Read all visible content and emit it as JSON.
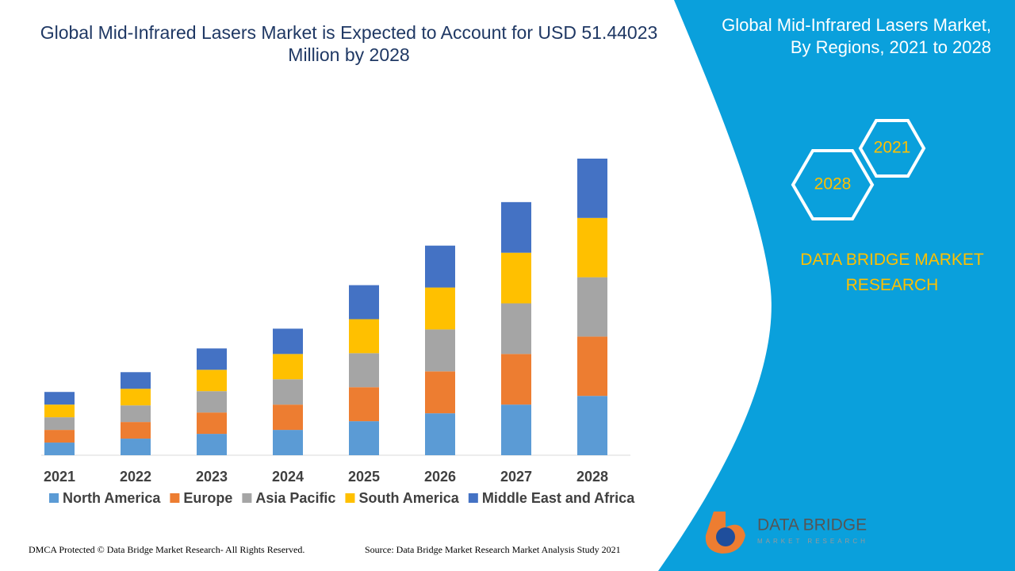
{
  "chart_data": {
    "type": "bar",
    "stacked": true,
    "title": "Global Mid-Infrared Lasers Market is Expected to Account for USD 51.44023 Million by 2028",
    "categories": [
      "2021",
      "2022",
      "2023",
      "2024",
      "2025",
      "2026",
      "2027",
      "2028"
    ],
    "series": [
      {
        "name": "North America",
        "color": "#5b9bd5",
        "values": [
          16,
          21,
          27,
          32,
          43,
          53,
          64,
          75
        ]
      },
      {
        "name": "Europe",
        "color": "#ed7d31",
        "values": [
          16,
          21,
          27,
          32,
          43,
          53,
          64,
          75
        ]
      },
      {
        "name": "Asia Pacific",
        "color": "#a5a5a5",
        "values": [
          16,
          21,
          27,
          32,
          43,
          53,
          64,
          75
        ]
      },
      {
        "name": "South America",
        "color": "#ffc000",
        "values": [
          16,
          21,
          27,
          32,
          43,
          53,
          64,
          75
        ]
      },
      {
        "name": "Middle East and Africa",
        "color": "#4472c4",
        "values": [
          16,
          21,
          27,
          32,
          43,
          53,
          64,
          75
        ]
      }
    ]
  },
  "panel": {
    "title": "Global Mid-Infrared Lasers Market, By Regions, 2021 to 2028",
    "hexagons": [
      "2021",
      "2028"
    ],
    "brand": "DATA BRIDGE MARKET RESEARCH"
  },
  "logo": {
    "name": "DATA BRIDGE",
    "tagline": "MARKET RESEARCH"
  },
  "footer": {
    "left": "DMCA Protected © Data Bridge Market Research- All Rights Reserved.",
    "right": "Source: Data Bridge Market Research Market Analysis Study 2021"
  }
}
